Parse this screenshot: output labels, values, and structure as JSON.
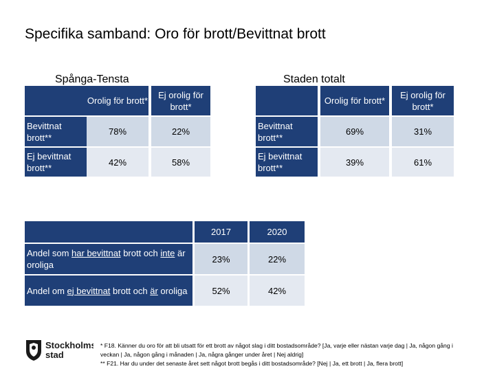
{
  "title": "Specifika samband: Oro för brott/Bevittnat brott",
  "left_table": {
    "heading": "Spånga-Tensta",
    "col_headers": [
      "Orolig för brott*",
      "Ej orolig för brott*"
    ],
    "rows": [
      {
        "label": "Bevittnat brott**",
        "values": [
          "78%",
          "22%"
        ]
      },
      {
        "label": "Ej bevittnat brott**",
        "values": [
          "42%",
          "58%"
        ]
      }
    ]
  },
  "right_table": {
    "heading": "Staden totalt",
    "col_headers": [
      "Orolig för brott*",
      "Ej orolig för brott*"
    ],
    "rows": [
      {
        "label": "Bevittnat brott**",
        "values": [
          "69%",
          "31%"
        ]
      },
      {
        "label": "Ej bevittnat brott**",
        "values": [
          "39%",
          "61%"
        ]
      }
    ]
  },
  "bottom_table": {
    "col_headers": [
      "2017",
      "2020"
    ],
    "rows": [
      {
        "label_parts": [
          "Andel som ",
          "har bevittnat",
          " brott och ",
          "inte",
          " är oroliga"
        ],
        "values": [
          "23%",
          "22%"
        ]
      },
      {
        "label_parts": [
          "Andel om ",
          "ej bevittnat",
          " brott och ",
          "är",
          " oroliga"
        ],
        "values": [
          "52%",
          "42%"
        ]
      }
    ]
  },
  "logo": {
    "line1": "Stockholms",
    "line2": "stad"
  },
  "footnotes": [
    "* F18. Känner du oro för att bli utsatt för ett brott av något slag i ditt bostadsområde? [Ja, varje eller nästan varje dag | Ja, någon gång i veckan | Ja, någon gång i månaden | Ja, några gånger under året | Nej aldrig]",
    "** F21. Har du under det senaste året sett något brott begås i ditt bostadsområde? [Nej | Ja, ett brott | Ja, flera brott]"
  ]
}
